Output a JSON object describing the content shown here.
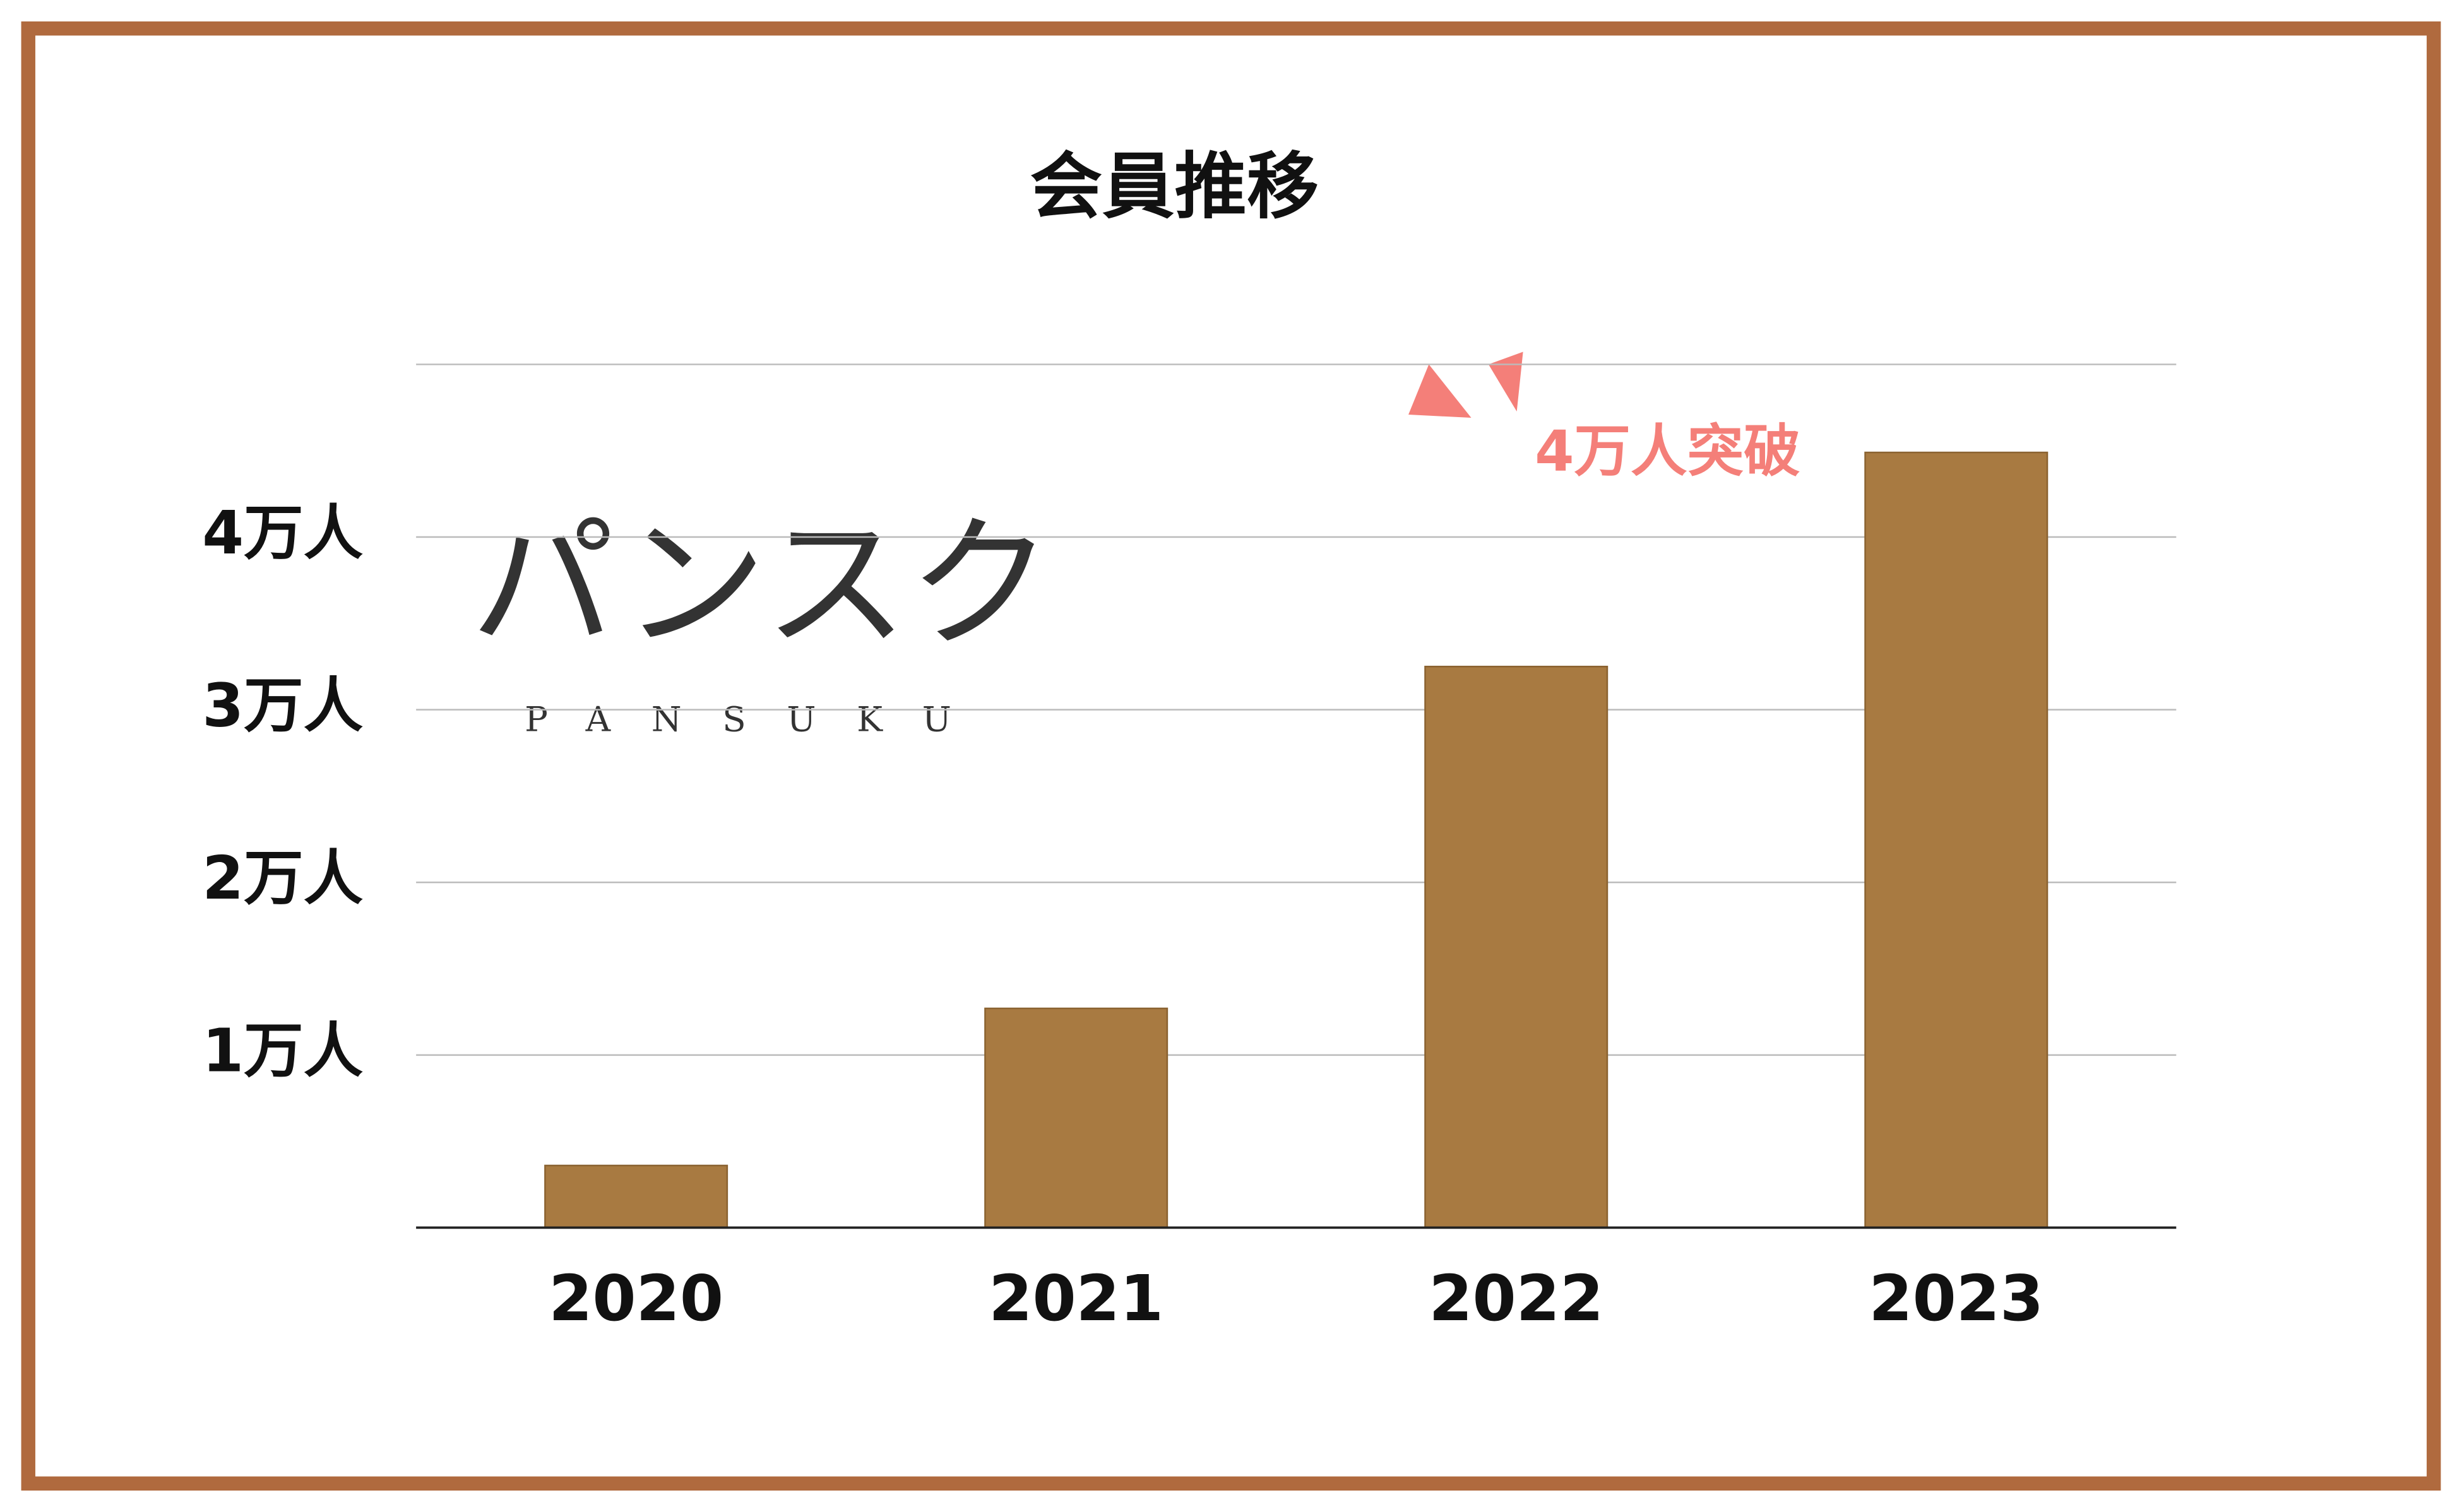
{
  "chart_data": {
    "type": "bar",
    "title": "会員推移",
    "categories": [
      "2020",
      "2021",
      "2022",
      "2023"
    ],
    "values": [
      0.36,
      1.27,
      3.25,
      4.49
    ],
    "color": "#a87a41",
    "ylim": [
      0,
      5
    ],
    "yticks": [
      {
        "value": 1,
        "label": "1万人"
      },
      {
        "value": 2,
        "label": "2万人"
      },
      {
        "value": 3,
        "label": "3万人"
      },
      {
        "value": 4,
        "label": "4万人"
      }
    ],
    "grid": true,
    "annotation": "4万人突破",
    "logo": {
      "title": "パンスク",
      "subtitle": "PANSUKU"
    }
  }
}
